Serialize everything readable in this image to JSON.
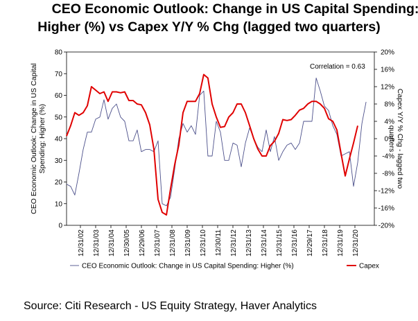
{
  "title_line1": "CEO Economic Outlook: Change in US Capital Spending:",
  "title_line2": "Higher (%) vs Capex Y/Y % Chg (lagged two quarters)",
  "source": "Source: Citi Research - US Equity Strategy, Haver Analytics",
  "chart_data": {
    "type": "line",
    "annotation": "Correlation = 0.63",
    "y_left": {
      "label": "CEO Economic Outlook: Change in US Capital Spending: Higher (%)",
      "range": [
        0,
        80
      ],
      "ticks": [
        0,
        10,
        20,
        30,
        40,
        50,
        60,
        70,
        80
      ],
      "tick_labels": [
        "0",
        "10",
        "20",
        "30",
        "40",
        "50",
        "60",
        "70",
        "80"
      ]
    },
    "y_right": {
      "label": "Capex Y/Y % Chg - lagged two quarters",
      "range": [
        -20,
        20
      ],
      "ticks": [
        -20,
        -16,
        -12,
        -8,
        -4,
        0,
        4,
        8,
        12,
        16,
        20
      ],
      "tick_labels": [
        "-20%",
        "-16%",
        "-12%",
        "-8%",
        "-4%",
        "0%",
        "4%",
        "8%",
        "12%",
        "16%",
        "20%"
      ]
    },
    "x_tick_labels": [
      "12/31/02",
      "12/31/03",
      "12/31/04",
      "12/30/05",
      "12/29/06",
      "12/31/07",
      "12/31/08",
      "12/31/09",
      "12/31/10",
      "12/30/11",
      "12/31/12",
      "12/31/13",
      "12/31/14",
      "12/31/15",
      "12/31/16",
      "12/29/17",
      "12/31/18",
      "12/31/19",
      "12/31/20"
    ],
    "x_range": [
      "2002-12-31",
      "2021-06-30"
    ],
    "legend": "bottom",
    "grid": false,
    "series": [
      {
        "name": "CEO Economic Outlook: Change in US Capital Spending: Higher (%)",
        "axis": "left",
        "color": "#4b4f8a",
        "points": [
          [
            "2002-12-31",
            19
          ],
          [
            "2003-03-31",
            18
          ],
          [
            "2003-06-30",
            14
          ],
          [
            "2003-09-30",
            24
          ],
          [
            "2003-12-31",
            35
          ],
          [
            "2004-03-31",
            43
          ],
          [
            "2004-06-30",
            43
          ],
          [
            "2004-09-30",
            49
          ],
          [
            "2004-12-31",
            50
          ],
          [
            "2005-03-31",
            58
          ],
          [
            "2005-06-30",
            49
          ],
          [
            "2005-09-30",
            54
          ],
          [
            "2005-12-31",
            56
          ],
          [
            "2006-03-31",
            50
          ],
          [
            "2006-06-30",
            48
          ],
          [
            "2006-09-30",
            39
          ],
          [
            "2006-12-31",
            39
          ],
          [
            "2007-03-31",
            44
          ],
          [
            "2007-06-30",
            34
          ],
          [
            "2007-09-30",
            35
          ],
          [
            "2007-12-31",
            35
          ],
          [
            "2008-03-31",
            34
          ],
          [
            "2008-06-30",
            39
          ],
          [
            "2008-09-30",
            10
          ],
          [
            "2008-12-31",
            9
          ],
          [
            "2009-03-31",
            13
          ],
          [
            "2009-06-30",
            26
          ],
          [
            "2009-09-30",
            40
          ],
          [
            "2009-12-31",
            47
          ],
          [
            "2010-03-31",
            43
          ],
          [
            "2010-06-30",
            46
          ],
          [
            "2010-09-30",
            42
          ],
          [
            "2010-12-31",
            60
          ],
          [
            "2011-03-31",
            62
          ],
          [
            "2011-06-30",
            32
          ],
          [
            "2011-09-30",
            32
          ],
          [
            "2011-12-31",
            48
          ],
          [
            "2012-03-31",
            43
          ],
          [
            "2012-06-30",
            30
          ],
          [
            "2012-09-30",
            30
          ],
          [
            "2012-12-31",
            38
          ],
          [
            "2013-03-31",
            37
          ],
          [
            "2013-06-30",
            27
          ],
          [
            "2013-09-30",
            38
          ],
          [
            "2013-12-31",
            45
          ],
          [
            "2014-03-31",
            40
          ],
          [
            "2014-06-30",
            36
          ],
          [
            "2014-09-30",
            34
          ],
          [
            "2014-12-31",
            44
          ],
          [
            "2015-03-31",
            34
          ],
          [
            "2015-06-30",
            41
          ],
          [
            "2015-09-30",
            30
          ],
          [
            "2015-12-31",
            34
          ],
          [
            "2016-03-31",
            37
          ],
          [
            "2016-06-30",
            38
          ],
          [
            "2016-09-30",
            35
          ],
          [
            "2016-12-31",
            38
          ],
          [
            "2017-03-31",
            48
          ],
          [
            "2017-06-30",
            48
          ],
          [
            "2017-09-30",
            48
          ],
          [
            "2017-12-31",
            68
          ],
          [
            "2018-03-31",
            62
          ],
          [
            "2018-06-30",
            55
          ],
          [
            "2018-09-30",
            53
          ],
          [
            "2018-12-31",
            46
          ],
          [
            "2019-03-31",
            42
          ],
          [
            "2019-06-30",
            32
          ],
          [
            "2019-09-30",
            33
          ],
          [
            "2019-12-31",
            34
          ],
          [
            "2020-03-31",
            18
          ],
          [
            "2020-06-30",
            29
          ],
          [
            "2020-09-30",
            47
          ],
          [
            "2020-12-31",
            57
          ]
        ]
      },
      {
        "name": "Capex",
        "axis": "right",
        "color": "#e00000",
        "points": [
          [
            "2002-12-31",
            0.6
          ],
          [
            "2003-03-31",
            3.0
          ],
          [
            "2003-06-30",
            6.0
          ],
          [
            "2003-09-30",
            5.4
          ],
          [
            "2003-12-31",
            6.0
          ],
          [
            "2004-03-31",
            7.6
          ],
          [
            "2004-06-30",
            12.0
          ],
          [
            "2004-09-30",
            11.2
          ],
          [
            "2004-12-31",
            10.4
          ],
          [
            "2005-03-31",
            10.8
          ],
          [
            "2005-06-30",
            8.6
          ],
          [
            "2005-09-30",
            10.8
          ],
          [
            "2005-12-31",
            10.8
          ],
          [
            "2006-03-31",
            10.6
          ],
          [
            "2006-06-30",
            10.8
          ],
          [
            "2006-09-30",
            8.8
          ],
          [
            "2006-12-31",
            8.8
          ],
          [
            "2007-03-31",
            8.0
          ],
          [
            "2007-06-30",
            7.8
          ],
          [
            "2007-09-30",
            6.0
          ],
          [
            "2007-12-31",
            3.2
          ],
          [
            "2008-03-31",
            -2.4
          ],
          [
            "2008-06-30",
            -14.0
          ],
          [
            "2008-09-30",
            -17.0
          ],
          [
            "2008-12-31",
            -17.6
          ],
          [
            "2009-03-31",
            -11.6
          ],
          [
            "2009-06-30",
            -6.0
          ],
          [
            "2009-09-30",
            -1.4
          ],
          [
            "2009-12-31",
            6.0
          ],
          [
            "2010-03-31",
            8.6
          ],
          [
            "2010-06-30",
            8.6
          ],
          [
            "2010-09-30",
            8.6
          ],
          [
            "2010-12-31",
            10.4
          ],
          [
            "2011-03-31",
            14.8
          ],
          [
            "2011-06-30",
            14.0
          ],
          [
            "2011-09-30",
            8.0
          ],
          [
            "2011-12-31",
            5.0
          ],
          [
            "2012-03-31",
            2.6
          ],
          [
            "2012-06-30",
            2.8
          ],
          [
            "2012-09-30",
            5.0
          ],
          [
            "2012-12-31",
            6.0
          ],
          [
            "2013-03-31",
            8.0
          ],
          [
            "2013-06-30",
            8.0
          ],
          [
            "2013-09-30",
            6.0
          ],
          [
            "2013-12-31",
            3.0
          ],
          [
            "2014-03-31",
            0.0
          ],
          [
            "2014-06-30",
            -2.4
          ],
          [
            "2014-09-30",
            -4.0
          ],
          [
            "2014-12-31",
            -4.0
          ],
          [
            "2015-03-31",
            -1.6
          ],
          [
            "2015-06-30",
            -0.6
          ],
          [
            "2015-09-30",
            1.2
          ],
          [
            "2015-12-31",
            4.4
          ],
          [
            "2016-03-31",
            4.2
          ],
          [
            "2016-06-30",
            4.4
          ],
          [
            "2016-09-30",
            5.4
          ],
          [
            "2016-12-31",
            6.6
          ],
          [
            "2017-03-31",
            7.0
          ],
          [
            "2017-06-30",
            8.0
          ],
          [
            "2017-09-30",
            8.6
          ],
          [
            "2017-12-31",
            8.6
          ],
          [
            "2018-03-31",
            8.0
          ],
          [
            "2018-06-30",
            7.0
          ],
          [
            "2018-09-30",
            4.6
          ],
          [
            "2018-12-31",
            4.0
          ],
          [
            "2019-03-31",
            2.0
          ],
          [
            "2019-06-30",
            -3.4
          ],
          [
            "2019-09-30",
            -8.6
          ],
          [
            "2019-12-31",
            -4.6
          ],
          [
            "2020-03-31",
            -1.0
          ],
          [
            "2020-06-30",
            3.0
          ]
        ]
      }
    ]
  }
}
